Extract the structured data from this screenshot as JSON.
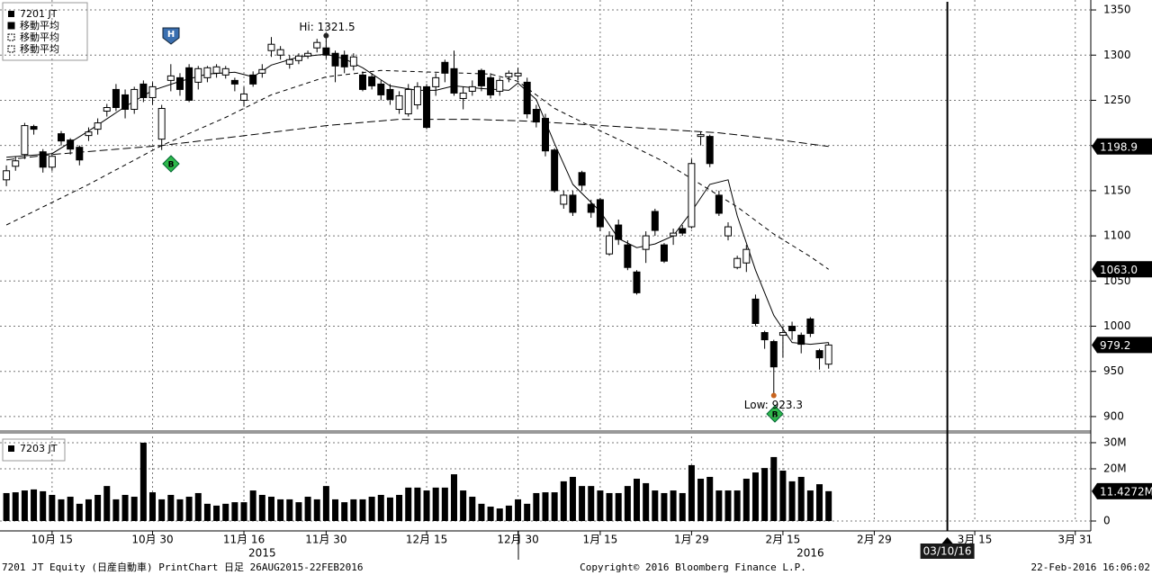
{
  "chart_data": [
    {
      "type": "candlestick",
      "series": {
        "name": "7201 JT",
        "open": [
          1162,
          1177,
          1190,
          1221,
          1193,
          1176,
          1213,
          1206,
          1198,
          1211,
          1218,
          1238,
          1262,
          1256,
          1240,
          1268,
          1253,
          1207,
          1272,
          1275,
          1286,
          1270,
          1275,
          1280,
          1278,
          1272,
          1250,
          1278,
          1280,
          1305,
          1300,
          1290,
          1294,
          1299,
          1308,
          1308,
          1302,
          1300,
          1288,
          1278,
          1276,
          1268,
          1262,
          1240,
          1235,
          1245,
          1265,
          1265,
          1292,
          1285,
          1252,
          1260,
          1283,
          1275,
          1260,
          1276,
          1277,
          1270,
          1240,
          1230,
          1195,
          1135,
          1145,
          1170,
          1135,
          1140,
          1080,
          1112,
          1090,
          1060,
          1085,
          1127,
          1090,
          1100,
          1108,
          1110,
          1210,
          1210,
          1145,
          1100,
          1065,
          1070,
          1030,
          993,
          983,
          990,
          1000,
          990,
          1008,
          973,
          958
        ],
        "high": [
          1178,
          1188,
          1225,
          1223,
          1196,
          1192,
          1216,
          1208,
          1200,
          1220,
          1230,
          1246,
          1268,
          1262,
          1265,
          1272,
          1270,
          1245,
          1290,
          1280,
          1290,
          1288,
          1288,
          1290,
          1288,
          1275,
          1265,
          1282,
          1290,
          1320,
          1310,
          1300,
          1302,
          1305,
          1318,
          1321.5,
          1305,
          1305,
          1302,
          1282,
          1280,
          1272,
          1268,
          1260,
          1268,
          1270,
          1268,
          1280,
          1295,
          1305,
          1265,
          1272,
          1285,
          1280,
          1275,
          1283,
          1286,
          1275,
          1245,
          1235,
          1197,
          1150,
          1150,
          1172,
          1140,
          1142,
          1105,
          1118,
          1095,
          1062,
          1105,
          1130,
          1092,
          1108,
          1112,
          1185,
          1215,
          1212,
          1150,
          1115,
          1078,
          1090,
          1035,
          995,
          985,
          1000,
          1005,
          993,
          1010,
          975,
          982
        ],
        "low": [
          1155,
          1172,
          1185,
          1212,
          1170,
          1172,
          1200,
          1190,
          1178,
          1205,
          1212,
          1232,
          1238,
          1230,
          1235,
          1248,
          1245,
          1195,
          1260,
          1255,
          1248,
          1262,
          1270,
          1275,
          1274,
          1260,
          1243,
          1265,
          1275,
          1298,
          1295,
          1285,
          1290,
          1296,
          1303,
          1296,
          1270,
          1280,
          1283,
          1260,
          1262,
          1250,
          1245,
          1235,
          1232,
          1240,
          1218,
          1255,
          1270,
          1255,
          1240,
          1255,
          1260,
          1252,
          1255,
          1270,
          1272,
          1230,
          1220,
          1188,
          1148,
          1130,
          1122,
          1150,
          1120,
          1105,
          1078,
          1090,
          1062,
          1035,
          1070,
          1100,
          1070,
          1090,
          1100,
          1108,
          1200,
          1176,
          1122,
          1095,
          1063,
          1060,
          1000,
          975,
          923.3,
          965,
          985,
          970,
          988,
          952,
          953
        ],
        "close": [
          1172,
          1183,
          1222,
          1218,
          1176,
          1188,
          1205,
          1196,
          1184,
          1215,
          1225,
          1242,
          1242,
          1240,
          1262,
          1253,
          1265,
          1241,
          1277,
          1262,
          1250,
          1285,
          1286,
          1287,
          1285,
          1268,
          1257,
          1268,
          1284,
          1312,
          1306,
          1295,
          1299,
          1302,
          1314,
          1300,
          1288,
          1287,
          1298,
          1262,
          1266,
          1256,
          1251,
          1255,
          1262,
          1265,
          1220,
          1275,
          1280,
          1258,
          1258,
          1265,
          1266,
          1256,
          1272,
          1280,
          1280,
          1235,
          1226,
          1194,
          1150,
          1145,
          1126,
          1156,
          1126,
          1110,
          1100,
          1096,
          1065,
          1037,
          1100,
          1106,
          1072,
          1103,
          1103,
          1180,
          1212,
          1180,
          1125,
          1110,
          1075,
          1085,
          1003,
          985,
          955,
          993,
          995,
          980,
          992,
          965,
          979.2
        ]
      },
      "moving_averages": [
        {
          "name": "移動平均",
          "style": "solid",
          "x": [
            0,
            5,
            9,
            13,
            16,
            19,
            22,
            25,
            27,
            29,
            32,
            35,
            37,
            39,
            42,
            45,
            47,
            49,
            52,
            55,
            56,
            58,
            60,
            62,
            65,
            67,
            69,
            71,
            73,
            75,
            77,
            79,
            80,
            82,
            84,
            86,
            88,
            90
          ],
          "values": [
            1187,
            1191,
            1216,
            1243,
            1261,
            1271,
            1279,
            1281,
            1276,
            1289,
            1298,
            1301,
            1296,
            1286,
            1266,
            1261,
            1261,
            1266,
            1263,
            1261,
            1269,
            1251,
            1202,
            1157,
            1127,
            1097,
            1087,
            1091,
            1100,
            1127,
            1157,
            1162,
            1122,
            1062,
            1012,
            982,
            980,
            982
          ]
        },
        {
          "name": "移動平均",
          "style": "dashed",
          "x": [
            0,
            9,
            17,
            24,
            29,
            35,
            41,
            47,
            53,
            56,
            60,
            64,
            68,
            72,
            76,
            80,
            84,
            88,
            90
          ],
          "values": [
            1112,
            1157,
            1200,
            1231,
            1256,
            1276,
            1283,
            1281,
            1279,
            1271,
            1241,
            1221,
            1202,
            1182,
            1157,
            1132,
            1102,
            1077,
            1063
          ],
          "last_label": "1063.0"
        },
        {
          "name": "移動平均",
          "style": "longdash",
          "x": [
            0,
            5,
            17,
            27,
            35,
            43,
            51,
            57,
            62,
            70,
            78,
            84,
            90
          ],
          "values": [
            1184,
            1190,
            1200,
            1212,
            1222,
            1229,
            1229,
            1227,
            1224,
            1219,
            1214,
            1207,
            1198.9
          ]
        }
      ],
      "annotations": [
        "Hi: 1321.5",
        "Low: 923.3"
      ],
      "signals": [
        "H",
        "B",
        "B"
      ],
      "xlim": [
        -0.7,
        118.7
      ],
      "ylim": [
        885,
        1361
      ],
      "yticks": [
        900,
        950,
        1000,
        1050,
        1100,
        1150,
        1200,
        1250,
        1300,
        1350
      ],
      "grid": true
    },
    {
      "type": "bar",
      "name": "7203 JT",
      "color": "#000000",
      "values": [
        10700000,
        11000000,
        11700000,
        12100000,
        11400000,
        10000000,
        8300000,
        9300000,
        6600000,
        8300000,
        10000000,
        13400000,
        8300000,
        10000000,
        9300000,
        30000000,
        11000000,
        8300000,
        10000000,
        8300000,
        9300000,
        10700000,
        6600000,
        5900000,
        6600000,
        7200000,
        7200000,
        11700000,
        10000000,
        9300000,
        8300000,
        8300000,
        7200000,
        9300000,
        8300000,
        13400000,
        8300000,
        7200000,
        8300000,
        8300000,
        9300000,
        10000000,
        9000000,
        10000000,
        12800000,
        12800000,
        11700000,
        12800000,
        12800000,
        17900000,
        11700000,
        9300000,
        6600000,
        5500000,
        4800000,
        5900000,
        8300000,
        6600000,
        10700000,
        11000000,
        11000000,
        15200000,
        16900000,
        13400000,
        13400000,
        11700000,
        10700000,
        10700000,
        13400000,
        16200000,
        14500000,
        11700000,
        10700000,
        11700000,
        10700000,
        21400000,
        16200000,
        16900000,
        11700000,
        11700000,
        11700000,
        16200000,
        18600000,
        20300000,
        24500000,
        19300000,
        15200000,
        16900000,
        11700000,
        14100000,
        11427200
      ],
      "last_label": "11.4272M",
      "xlim": [
        -0.7,
        118.7
      ],
      "ylim": [
        0,
        32400000
      ],
      "yticks": [
        0,
        {
          "value": 20000000,
          "label": "20M"
        },
        {
          "value": 30000000,
          "label": "30M"
        }
      ],
      "xticks": [
        {
          "value": 5,
          "label": "10月 15"
        },
        {
          "value": 16,
          "label": "10月 30"
        },
        {
          "value": 26,
          "label": "11月 16"
        },
        {
          "value": 35,
          "label": "11月 30"
        },
        {
          "value": 46,
          "label": "12月 15"
        },
        {
          "value": 56,
          "label": "12月 30"
        },
        {
          "value": 65,
          "label": "1月 15"
        },
        {
          "value": 75,
          "label": "1月 29"
        },
        {
          "value": 85,
          "label": "2月 15"
        },
        {
          "value": 95,
          "label": "2月 29"
        },
        {
          "value": 106,
          "label": "3月 15"
        },
        {
          "value": 117,
          "label": "3月 31"
        }
      ],
      "year_labels": [
        {
          "value": 28,
          "label": "2015"
        },
        {
          "value": 88,
          "label": "2016"
        }
      ],
      "event": {
        "value": 103,
        "label": "03/10/16"
      },
      "grid": true
    }
  ],
  "footer": {
    "left": "7201 JT Equity (日産自動車) PrintChart  日足 26AUG2015-22FEB2016",
    "center": "Copyright© 2016 Bloomberg Finance L.P.",
    "right": "22-Feb-2016 16:06:02"
  }
}
